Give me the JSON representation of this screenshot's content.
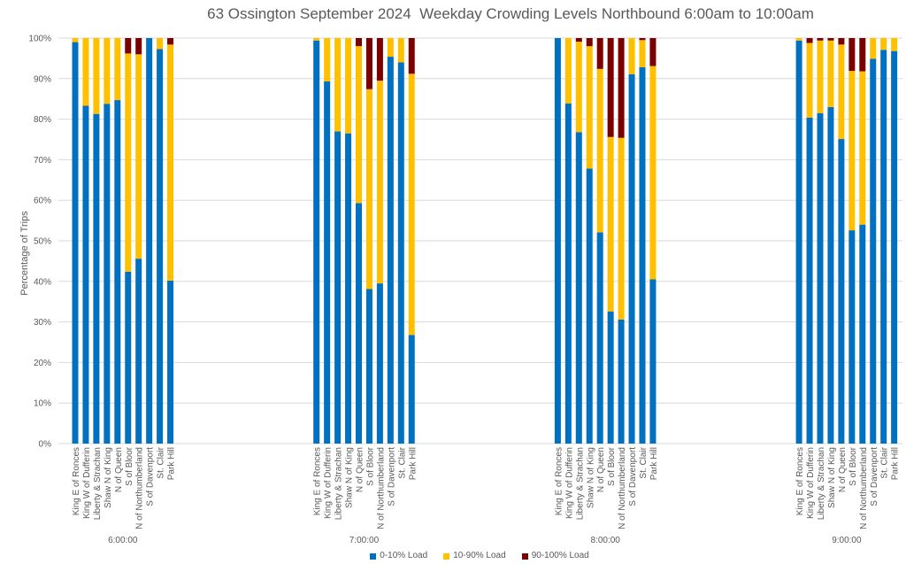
{
  "chart_data": {
    "type": "bar",
    "stacked": true,
    "title": "63 Ossington September 2024  Weekday Crowding Levels Northbound 6:00am to 10:00am",
    "ylabel": "Percentage of Trips",
    "xlabel": "",
    "ylim": [
      0,
      100
    ],
    "yticks": [
      "0%",
      "10%",
      "20%",
      "30%",
      "40%",
      "50%",
      "60%",
      "70%",
      "80%",
      "90%",
      "100%"
    ],
    "grid": true,
    "legend_position": "bottom",
    "groups": [
      "6:00:00",
      "7:00:00",
      "8:00:00",
      "9:00:00"
    ],
    "categories": [
      "King E of Ronces",
      "King W of Dufferin",
      "Liberty & Strachan",
      "Shaw N of King",
      "N of Queen",
      "S of Bloor",
      "N of Northumberland",
      "S of Davenport",
      "St. Clair",
      "Park Hill"
    ],
    "series": [
      {
        "name": "0-10% Load",
        "color": "#0070C0",
        "values": [
          [
            99,
            83.3,
            81.3,
            83.8,
            84.7,
            42.4,
            45.6,
            100,
            97.3,
            40.2
          ],
          [
            99.4,
            89.3,
            77,
            76.5,
            59.3,
            38.1,
            39.5,
            95.4,
            94,
            26.8
          ],
          [
            100,
            83.9,
            76.8,
            67.8,
            52.1,
            32.6,
            30.6,
            91.1,
            92.8,
            40.5
          ],
          [
            99.4,
            80.4,
            81.5,
            83,
            75.1,
            52.6,
            54,
            94.9,
            97.1,
            96.8
          ]
        ]
      },
      {
        "name": "10-90% Load",
        "color": "#FFC000",
        "values": [
          [
            1,
            16.7,
            18.7,
            16.2,
            15.3,
            53.8,
            50.4,
            0,
            2.7,
            58.2
          ],
          [
            0.6,
            10.7,
            23,
            23.5,
            38.7,
            49.3,
            50,
            4.6,
            6,
            64.4
          ],
          [
            0,
            16.1,
            22.3,
            30.2,
            40.3,
            43,
            44.8,
            8.9,
            6.7,
            52.6
          ],
          [
            0.6,
            18.4,
            17.9,
            16.4,
            23.3,
            39.3,
            37.8,
            5.1,
            2.9,
            3.2
          ]
        ]
      },
      {
        "name": "90-100% Load",
        "color": "#7B0000",
        "values": [
          [
            0,
            0,
            0,
            0,
            0,
            3.8,
            4,
            0,
            0,
            1.6
          ],
          [
            0,
            0,
            0,
            0,
            2,
            12.6,
            10.5,
            0,
            0,
            8.8
          ],
          [
            0,
            0,
            0.9,
            2,
            7.6,
            24.4,
            24.6,
            0,
            0.5,
            6.9
          ],
          [
            0,
            1.2,
            0.6,
            0.6,
            1.6,
            8.1,
            8.2,
            0,
            0,
            0
          ]
        ]
      }
    ]
  }
}
